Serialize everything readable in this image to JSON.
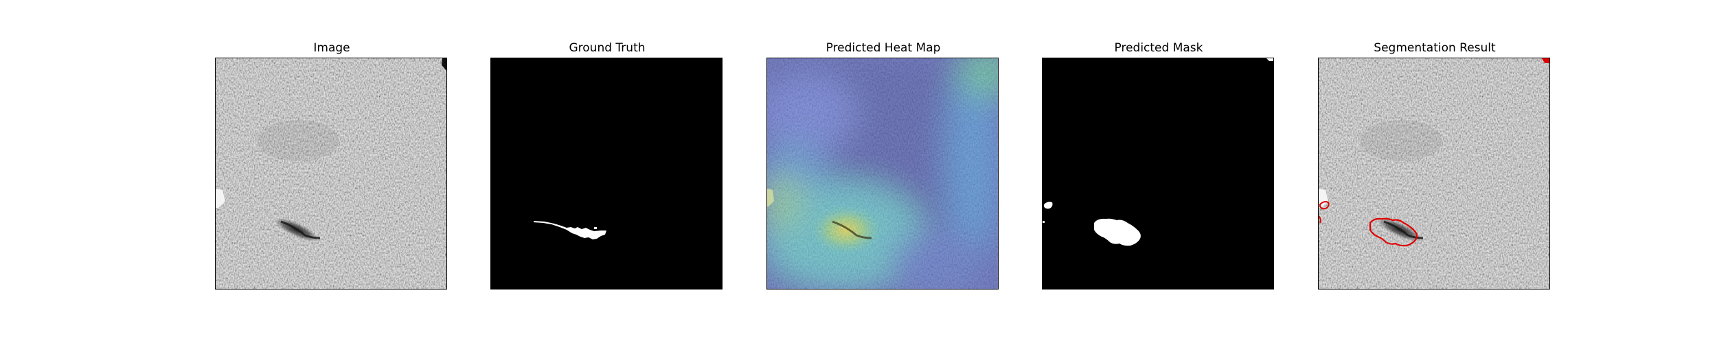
{
  "figure": {
    "panels": [
      {
        "title": "Image",
        "kind": "image"
      },
      {
        "title": "Ground Truth",
        "kind": "ground-truth"
      },
      {
        "title": "Predicted Heat Map",
        "kind": "heatmap"
      },
      {
        "title": "Predicted Mask",
        "kind": "mask"
      },
      {
        "title": "Segmentation Result",
        "kind": "segmentation"
      }
    ]
  },
  "colors": {
    "outline": "#e00000",
    "mask": "#ffffff",
    "background": "#000000"
  }
}
